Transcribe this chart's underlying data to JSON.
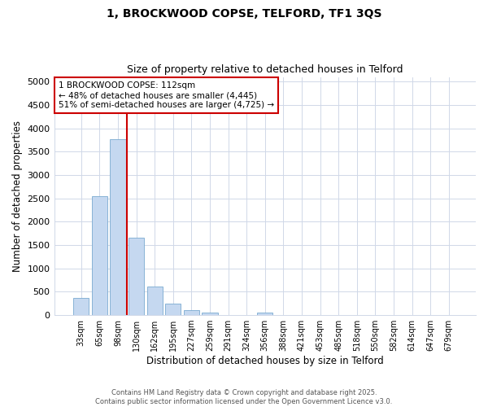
{
  "title1": "1, BROCKWOOD COPSE, TELFORD, TF1 3QS",
  "title2": "Size of property relative to detached houses in Telford",
  "xlabel": "Distribution of detached houses by size in Telford",
  "ylabel": "Number of detached properties",
  "categories": [
    "33sqm",
    "65sqm",
    "98sqm",
    "130sqm",
    "162sqm",
    "195sqm",
    "227sqm",
    "259sqm",
    "291sqm",
    "324sqm",
    "356sqm",
    "388sqm",
    "421sqm",
    "453sqm",
    "485sqm",
    "518sqm",
    "550sqm",
    "582sqm",
    "614sqm",
    "647sqm",
    "679sqm"
  ],
  "values": [
    375,
    2550,
    3775,
    1650,
    620,
    245,
    110,
    55,
    0,
    0,
    50,
    0,
    0,
    0,
    0,
    0,
    0,
    0,
    0,
    0,
    0
  ],
  "bar_color": "#c5d8f0",
  "bar_edge_color": "#7aaad0",
  "vline_x": 2.5,
  "vline_color": "#cc0000",
  "ylim": [
    0,
    5100
  ],
  "yticks": [
    0,
    500,
    1000,
    1500,
    2000,
    2500,
    3000,
    3500,
    4000,
    4500,
    5000
  ],
  "annotation_text": "1 BROCKWOOD COPSE: 112sqm\n← 48% of detached houses are smaller (4,445)\n51% of semi-detached houses are larger (4,725) →",
  "annotation_box_color": "#ffffff",
  "annotation_box_edge": "#cc0000",
  "footer1": "Contains HM Land Registry data © Crown copyright and database right 2025.",
  "footer2": "Contains public sector information licensed under the Open Government Licence v3.0.",
  "bg_color": "#ffffff",
  "plot_bg_color": "#ffffff",
  "grid_color": "#d0d8e8"
}
